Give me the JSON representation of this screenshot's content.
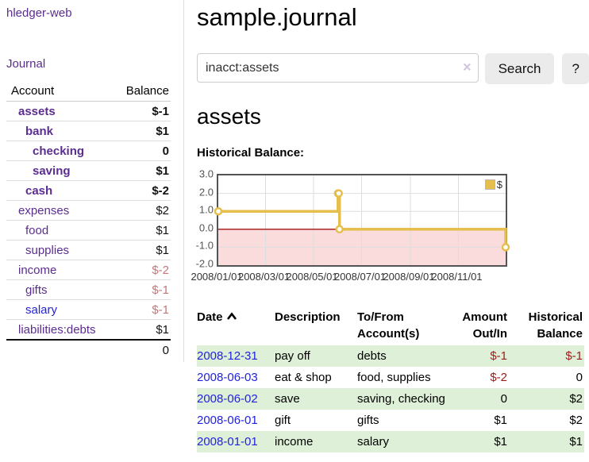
{
  "sidebar": {
    "brand": "hledger-web",
    "journal_link": "Journal",
    "accounts_table": {
      "headers": {
        "account": "Account",
        "balance": "Balance"
      },
      "rows": [
        {
          "name": "assets",
          "balance": "$-1",
          "depth": 1,
          "bold": true,
          "balance_style": "neg-strong"
        },
        {
          "name": "bank",
          "balance": "$1",
          "depth": 2,
          "bold": true,
          "balance_style": "pos"
        },
        {
          "name": "checking",
          "balance": "0",
          "depth": 3,
          "bold": true,
          "balance_style": "pos"
        },
        {
          "name": "saving",
          "balance": "$1",
          "depth": 3,
          "bold": true,
          "balance_style": "pos"
        },
        {
          "name": "cash",
          "balance": "$-2",
          "depth": 2,
          "bold": true,
          "balance_style": "neg-strong"
        },
        {
          "name": "expenses",
          "balance": "$2",
          "depth": 1,
          "bold": false,
          "balance_style": "pos"
        },
        {
          "name": "food",
          "balance": "$1",
          "depth": 2,
          "bold": false,
          "balance_style": "pos"
        },
        {
          "name": "supplies",
          "balance": "$1",
          "depth": 2,
          "bold": false,
          "balance_style": "pos"
        },
        {
          "name": "income",
          "balance": "$-2",
          "depth": 1,
          "bold": false,
          "balance_style": "neg-soft"
        },
        {
          "name": "gifts",
          "balance": "$-1",
          "depth": 2,
          "bold": false,
          "balance_style": "neg-soft"
        },
        {
          "name": "salary",
          "balance": "$-1",
          "depth": 2,
          "bold": false,
          "balance_style": "neg-soft",
          "link_color": "blue"
        },
        {
          "name": "liabilities:debts",
          "balance": "$1",
          "depth": 1,
          "bold": false,
          "balance_style": "pos"
        }
      ],
      "total": "0"
    }
  },
  "main": {
    "title": "sample.journal",
    "search": {
      "value": "inacct:assets",
      "clear_icon": "×",
      "button_label": "Search",
      "help_label": "?"
    },
    "account_heading": "assets",
    "chart_label": "Historical Balance:"
  },
  "chart_data": {
    "type": "line",
    "step": true,
    "title": "Historical Balance",
    "series": [
      {
        "name": "$",
        "color": "#e6be4c",
        "points": [
          [
            "2008-01-01",
            1
          ],
          [
            "2008-06-01",
            2
          ],
          [
            "2008-06-02",
            2
          ],
          [
            "2008-06-03",
            0
          ],
          [
            "2008-12-31",
            -1
          ]
        ]
      }
    ],
    "x_range": [
      "2008-01-01",
      "2008-12-31"
    ],
    "ylim": [
      -2,
      3
    ],
    "y_ticks": [
      {
        "label": "3.0",
        "value": 3
      },
      {
        "label": "2.0",
        "value": 2
      },
      {
        "label": "1.0",
        "value": 1
      },
      {
        "label": "0.0",
        "value": 0
      },
      {
        "label": "-1.0",
        "value": -1
      },
      {
        "label": "-2.0",
        "value": -2
      }
    ],
    "x_ticks": [
      {
        "label": "2008/01/01",
        "date": "2008-01-01"
      },
      {
        "label": "2008/03/01",
        "date": "2008-03-01"
      },
      {
        "label": "2008/05/01",
        "date": "2008-05-01"
      },
      {
        "label": "2008/07/01",
        "date": "2008-07-01"
      },
      {
        "label": "2008/09/01",
        "date": "2008-09-01"
      },
      {
        "label": "2008/11/01",
        "date": "2008-11-01"
      }
    ],
    "grid": true,
    "legend": {
      "position": "top-right",
      "items": [
        {
          "label": "$",
          "color": "#e6be4c"
        }
      ]
    },
    "negative_region_color": "#fadcdc",
    "zero_line_color": "#a31111",
    "grid_color": "#dedede"
  },
  "register": {
    "headers": {
      "date": "Date",
      "description": "Description",
      "accounts": "To/From Account(s)",
      "amount": "Amount Out/In",
      "balance": "Historical Balance"
    },
    "rows": [
      {
        "date": "2008-12-31",
        "description": "pay off",
        "accounts": "debts",
        "amount": "$-1",
        "amount_negative": true,
        "balance": "$-1",
        "balance_negative": true,
        "striped": true
      },
      {
        "date": "2008-06-03",
        "description": "eat & shop",
        "accounts": "food, supplies",
        "amount": "$-2",
        "amount_negative": true,
        "balance": "0",
        "balance_negative": false,
        "striped": false
      },
      {
        "date": "2008-06-02",
        "description": "save",
        "accounts": "saving, checking",
        "amount": "0",
        "amount_negative": false,
        "balance": "$2",
        "balance_negative": false,
        "striped": true
      },
      {
        "date": "2008-06-01",
        "description": "gift",
        "accounts": "gifts",
        "amount": "$1",
        "amount_negative": false,
        "balance": "$2",
        "balance_negative": false,
        "striped": false
      },
      {
        "date": "2008-01-01",
        "description": "income",
        "accounts": "salary",
        "amount": "$1",
        "amount_negative": false,
        "balance": "$1",
        "balance_negative": false,
        "striped": true
      }
    ]
  },
  "colors": {
    "link_purple": "#5b2d90",
    "link_blue": "#2222dd",
    "negative_strong": "#9b1c1c",
    "negative_soft": "#c27878",
    "row_stripe_green": "#dff0d8",
    "chart_line_gold": "#e6be4c"
  }
}
